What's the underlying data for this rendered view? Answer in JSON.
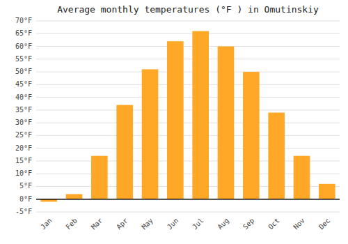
{
  "chart_data": {
    "type": "bar",
    "title": "Average monthly temperatures (°F ) in Omutinskiy",
    "categories": [
      "Jan",
      "Feb",
      "Mar",
      "Apr",
      "May",
      "Jun",
      "Jul",
      "Aug",
      "Sep",
      "Oct",
      "Nov",
      "Dec"
    ],
    "values": [
      -1,
      2,
      17,
      37,
      51,
      62,
      66,
      60,
      50,
      34,
      17,
      6
    ],
    "color": "#FFA726",
    "ylim": [
      -5,
      70
    ],
    "yticks": [
      {
        "value": -5,
        "label": "-5°F"
      },
      {
        "value": 0,
        "label": "0°F"
      },
      {
        "value": 5,
        "label": "5°F"
      },
      {
        "value": 10,
        "label": "10°F"
      },
      {
        "value": 15,
        "label": "15°F"
      },
      {
        "value": 20,
        "label": "20°F"
      },
      {
        "value": 25,
        "label": "25°F"
      },
      {
        "value": 30,
        "label": "30°F"
      },
      {
        "value": 35,
        "label": "35°F"
      },
      {
        "value": 40,
        "label": "40°F"
      },
      {
        "value": 45,
        "label": "45°F"
      },
      {
        "value": 50,
        "label": "50°F"
      },
      {
        "value": 55,
        "label": "55°F"
      },
      {
        "value": 60,
        "label": "60°F"
      },
      {
        "value": 65,
        "label": "65°F"
      },
      {
        "value": 70,
        "label": "70°F"
      }
    ],
    "grid": true
  }
}
